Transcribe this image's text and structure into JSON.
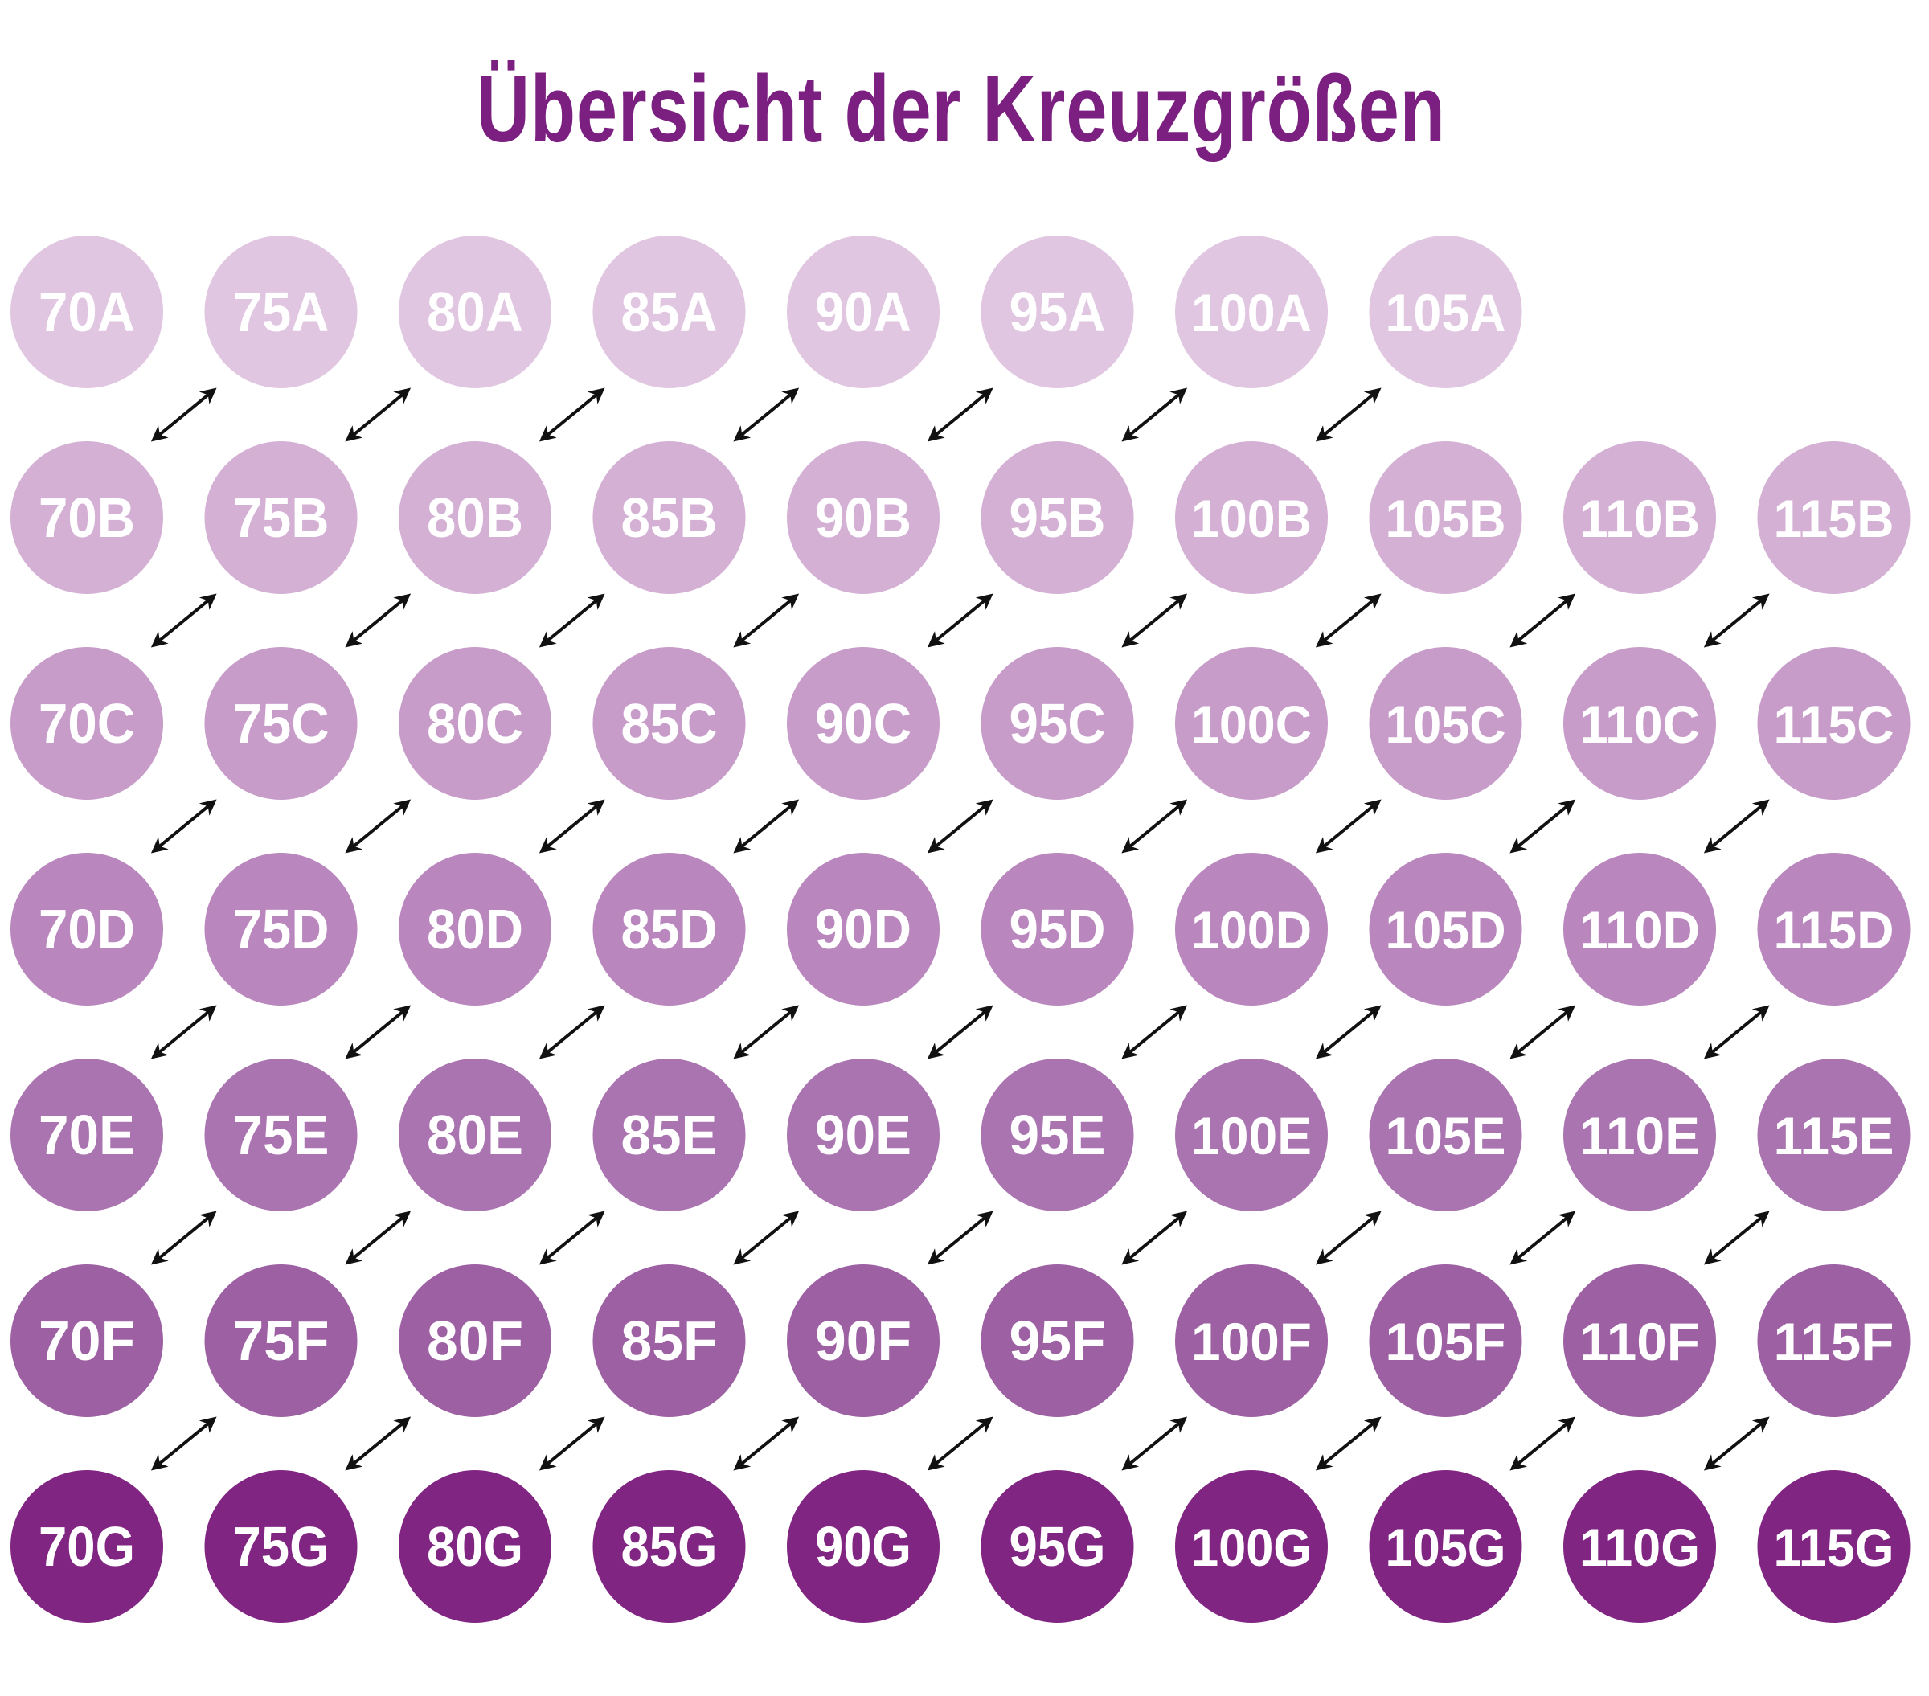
{
  "title": "Übersicht der Kreuzgrößen",
  "rows": [
    {
      "cup": "A",
      "color": "#e0c6e0",
      "sizes": [
        "70A",
        "75A",
        "80A",
        "85A",
        "90A",
        "95A",
        "100A",
        "105A"
      ]
    },
    {
      "cup": "B",
      "color": "#d4b0d4",
      "sizes": [
        "70B",
        "75B",
        "80B",
        "85B",
        "90B",
        "95B",
        "100B",
        "105B",
        "110B",
        "115B"
      ]
    },
    {
      "cup": "C",
      "color": "#c79cc9",
      "sizes": [
        "70C",
        "75C",
        "80C",
        "85C",
        "90C",
        "95C",
        "100C",
        "105C",
        "110C",
        "115C"
      ]
    },
    {
      "cup": "D",
      "color": "#b987bd",
      "sizes": [
        "70D",
        "75D",
        "80D",
        "85D",
        "90D",
        "95D",
        "100D",
        "105D",
        "110D",
        "115D"
      ]
    },
    {
      "cup": "E",
      "color": "#aa74b0",
      "sizes": [
        "70E",
        "75E",
        "80E",
        "85E",
        "90E",
        "95E",
        "100E",
        "105E",
        "110E",
        "115E"
      ]
    },
    {
      "cup": "F",
      "color": "#9c60a3",
      "sizes": [
        "70F",
        "75F",
        "80F",
        "85F",
        "90F",
        "95F",
        "100F",
        "105F",
        "110F",
        "115F"
      ]
    },
    {
      "cup": "G",
      "color": "#812583",
      "sizes": [
        "70G",
        "75G",
        "80G",
        "85G",
        "90G",
        "95G",
        "100G",
        "105G",
        "110G",
        "115G"
      ]
    }
  ],
  "arrow_color": "#111111",
  "arrow_icon": "double-headed-arrow"
}
